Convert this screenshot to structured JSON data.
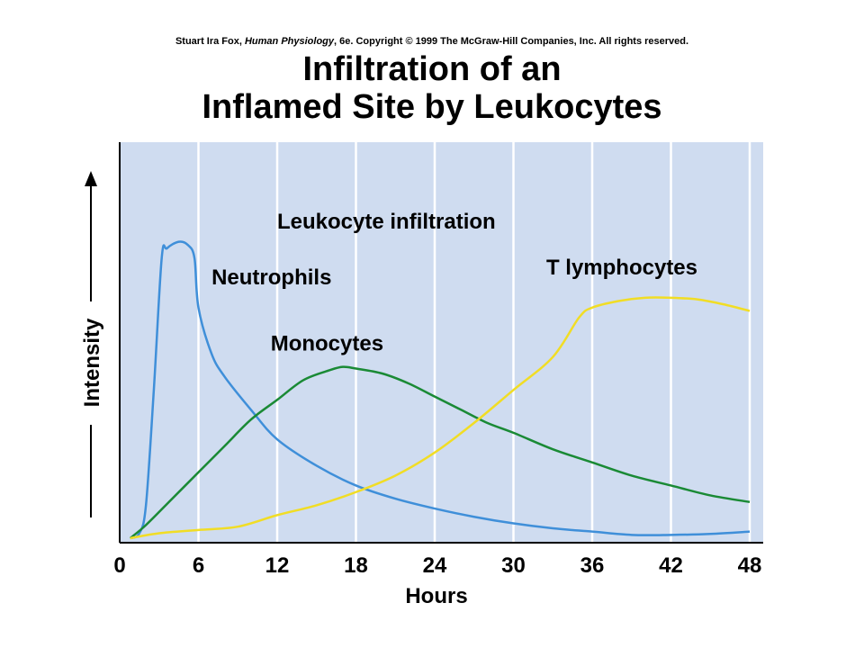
{
  "header": {
    "copyright_author": "Stuart Ira Fox, ",
    "copyright_book": "Human Physiology",
    "copyright_rest": ", 6e. Copyright © 1999 The McGraw-Hill Companies, Inc.  All rights reserved.",
    "title_line1": "Infiltration of an",
    "title_line2": "Inflamed Site by Leukocytes"
  },
  "colors": {
    "plot_background": "#cfdcf0",
    "gridline": "#ffffff",
    "neutrophils": "#3f8fd9",
    "monocytes": "#1a8a35",
    "t_lymphocytes": "#f1dd25"
  },
  "chart_data": {
    "type": "line",
    "title": "Leukocyte infiltration",
    "xlabel": "Hours",
    "ylabel": "Intensity",
    "xlim": [
      0,
      48
    ],
    "ylim": [
      0,
      100
    ],
    "x_ticks": [
      "0",
      "6",
      "12",
      "18",
      "24",
      "30",
      "36",
      "42",
      "48"
    ],
    "grid": "vertical",
    "series": [
      {
        "name": "Neutrophils",
        "color": "#3f8fd9",
        "points": [
          [
            0.8,
            0
          ],
          [
            1.5,
            1.5
          ],
          [
            2.0,
            10
          ],
          [
            2.6,
            45
          ],
          [
            3.2,
            85
          ],
          [
            3.6,
            88
          ],
          [
            4.5,
            90
          ],
          [
            5.2,
            89
          ],
          [
            5.7,
            85
          ],
          [
            6.0,
            70
          ],
          [
            7,
            56
          ],
          [
            8,
            49
          ],
          [
            10,
            39
          ],
          [
            12,
            30
          ],
          [
            15,
            22
          ],
          [
            18,
            16
          ],
          [
            21,
            12
          ],
          [
            24,
            9
          ],
          [
            27,
            6.5
          ],
          [
            30,
            4.5
          ],
          [
            33,
            3
          ],
          [
            36,
            2
          ],
          [
            39,
            1
          ],
          [
            42,
            1
          ],
          [
            45,
            1.3
          ],
          [
            48,
            2
          ]
        ]
      },
      {
        "name": "Monocytes",
        "color": "#1a8a35",
        "points": [
          [
            0.8,
            0
          ],
          [
            2,
            4
          ],
          [
            4,
            12
          ],
          [
            6,
            20
          ],
          [
            8,
            28
          ],
          [
            10,
            36
          ],
          [
            12,
            42
          ],
          [
            14,
            48
          ],
          [
            16,
            51
          ],
          [
            17,
            52
          ],
          [
            18,
            51.5
          ],
          [
            20,
            50
          ],
          [
            22,
            47
          ],
          [
            24,
            43
          ],
          [
            26,
            39
          ],
          [
            28,
            35
          ],
          [
            30,
            32
          ],
          [
            33,
            27
          ],
          [
            36,
            23
          ],
          [
            39,
            19
          ],
          [
            42,
            16
          ],
          [
            45,
            13
          ],
          [
            48,
            11
          ]
        ]
      },
      {
        "name": "T lymphocytes",
        "color": "#f1dd25",
        "points": [
          [
            0.8,
            0
          ],
          [
            3,
            1.5
          ],
          [
            6,
            2.5
          ],
          [
            9,
            3.5
          ],
          [
            12,
            7
          ],
          [
            15,
            10
          ],
          [
            18,
            14
          ],
          [
            21,
            19
          ],
          [
            24,
            26
          ],
          [
            27,
            35
          ],
          [
            30,
            45
          ],
          [
            33,
            55
          ],
          [
            35,
            67
          ],
          [
            36,
            70
          ],
          [
            38,
            72
          ],
          [
            40,
            73
          ],
          [
            42,
            73
          ],
          [
            44,
            72.5
          ],
          [
            46,
            71
          ],
          [
            48,
            69
          ]
        ]
      }
    ],
    "annotations": [
      {
        "text": "Neutrophils",
        "x": 7,
        "y": 77
      },
      {
        "text": "Monocytes",
        "x": 11.5,
        "y": 57
      },
      {
        "text": "T lymphocytes",
        "x": 32.5,
        "y": 80
      },
      {
        "text": "Leukocyte infiltration",
        "x": 12,
        "y": 94
      }
    ]
  }
}
